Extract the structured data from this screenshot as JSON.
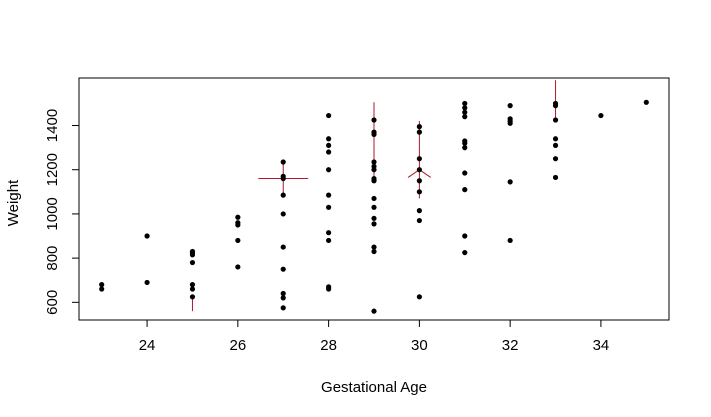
{
  "chart_data": {
    "type": "scatter",
    "title": "",
    "xlabel": "Gestational Age",
    "ylabel": "Weight",
    "xlim": [
      22.5,
      35.5
    ],
    "ylim": [
      520,
      1615
    ],
    "xticks": [
      24,
      26,
      28,
      30,
      32,
      34
    ],
    "yticks": [
      600,
      800,
      1000,
      1200,
      1400
    ],
    "grid": false,
    "legend": "none",
    "point_color": "#000000",
    "glyph_color": "#b2182b",
    "points": [
      {
        "x": 23,
        "y": 680
      },
      {
        "x": 23,
        "y": 660
      },
      {
        "x": 24,
        "y": 900
      },
      {
        "x": 24,
        "y": 690
      },
      {
        "x": 25,
        "y": 830
      },
      {
        "x": 25,
        "y": 825
      },
      {
        "x": 25,
        "y": 815
      },
      {
        "x": 25,
        "y": 780
      },
      {
        "x": 25,
        "y": 680
      },
      {
        "x": 25,
        "y": 660
      },
      {
        "x": 25,
        "y": 625
      },
      {
        "x": 26,
        "y": 985
      },
      {
        "x": 26,
        "y": 960
      },
      {
        "x": 26,
        "y": 950
      },
      {
        "x": 26,
        "y": 880
      },
      {
        "x": 26,
        "y": 760
      },
      {
        "x": 27,
        "y": 1235
      },
      {
        "x": 27,
        "y": 1170
      },
      {
        "x": 27,
        "y": 1160
      },
      {
        "x": 27,
        "y": 1085
      },
      {
        "x": 27,
        "y": 1000
      },
      {
        "x": 27,
        "y": 850
      },
      {
        "x": 27,
        "y": 750
      },
      {
        "x": 27,
        "y": 640
      },
      {
        "x": 27,
        "y": 620
      },
      {
        "x": 27,
        "y": 575
      },
      {
        "x": 28,
        "y": 1445
      },
      {
        "x": 28,
        "y": 1340
      },
      {
        "x": 28,
        "y": 1310
      },
      {
        "x": 28,
        "y": 1280
      },
      {
        "x": 28,
        "y": 1200
      },
      {
        "x": 28,
        "y": 1085
      },
      {
        "x": 28,
        "y": 1030
      },
      {
        "x": 28,
        "y": 915
      },
      {
        "x": 28,
        "y": 880
      },
      {
        "x": 28,
        "y": 670
      },
      {
        "x": 28,
        "y": 660
      },
      {
        "x": 29,
        "y": 1425
      },
      {
        "x": 29,
        "y": 1370
      },
      {
        "x": 29,
        "y": 1360
      },
      {
        "x": 29,
        "y": 1235
      },
      {
        "x": 29,
        "y": 1215
      },
      {
        "x": 29,
        "y": 1200
      },
      {
        "x": 29,
        "y": 1160
      },
      {
        "x": 29,
        "y": 1150
      },
      {
        "x": 29,
        "y": 1070
      },
      {
        "x": 29,
        "y": 1030
      },
      {
        "x": 29,
        "y": 980
      },
      {
        "x": 29,
        "y": 955
      },
      {
        "x": 29,
        "y": 850
      },
      {
        "x": 29,
        "y": 830
      },
      {
        "x": 29,
        "y": 560
      },
      {
        "x": 30,
        "y": 1395
      },
      {
        "x": 30,
        "y": 1370
      },
      {
        "x": 30,
        "y": 1250
      },
      {
        "x": 30,
        "y": 1200
      },
      {
        "x": 30,
        "y": 1150
      },
      {
        "x": 30,
        "y": 1100
      },
      {
        "x": 30,
        "y": 1015
      },
      {
        "x": 30,
        "y": 970
      },
      {
        "x": 30,
        "y": 625
      },
      {
        "x": 31,
        "y": 1500
      },
      {
        "x": 31,
        "y": 1480
      },
      {
        "x": 31,
        "y": 1460
      },
      {
        "x": 31,
        "y": 1440
      },
      {
        "x": 31,
        "y": 1330
      },
      {
        "x": 31,
        "y": 1320
      },
      {
        "x": 31,
        "y": 1300
      },
      {
        "x": 31,
        "y": 1185
      },
      {
        "x": 31,
        "y": 1110
      },
      {
        "x": 31,
        "y": 900
      },
      {
        "x": 31,
        "y": 825
      },
      {
        "x": 32,
        "y": 1490
      },
      {
        "x": 32,
        "y": 1430
      },
      {
        "x": 32,
        "y": 1420
      },
      {
        "x": 32,
        "y": 1410
      },
      {
        "x": 32,
        "y": 1145
      },
      {
        "x": 32,
        "y": 880
      },
      {
        "x": 33,
        "y": 1500
      },
      {
        "x": 33,
        "y": 1490
      },
      {
        "x": 33,
        "y": 1425
      },
      {
        "x": 33,
        "y": 1340
      },
      {
        "x": 33,
        "y": 1310
      },
      {
        "x": 33,
        "y": 1250
      },
      {
        "x": 33,
        "y": 1165
      },
      {
        "x": 34,
        "y": 1445
      },
      {
        "x": 35,
        "y": 1505
      }
    ],
    "sunflowers": [
      {
        "x": 25,
        "y": 625,
        "rays": [
          [
            0,
            -65
          ]
        ]
      },
      {
        "x": 27,
        "y": 1160,
        "rays": [
          [
            -0.55,
            0
          ],
          [
            0.55,
            0
          ],
          [
            0,
            75
          ],
          [
            0,
            -75
          ]
        ]
      },
      {
        "x": 29,
        "y": 1355,
        "rays": [
          [
            0,
            150
          ],
          [
            0,
            -210
          ]
        ]
      },
      {
        "x": 30,
        "y": 1200,
        "rays": [
          [
            0,
            220
          ],
          [
            0,
            -130
          ],
          [
            -0.25,
            -35
          ],
          [
            0.25,
            -35
          ]
        ]
      },
      {
        "x": 33,
        "y": 1495,
        "rays": [
          [
            0,
            110
          ],
          [
            0,
            -70
          ]
        ]
      }
    ]
  }
}
